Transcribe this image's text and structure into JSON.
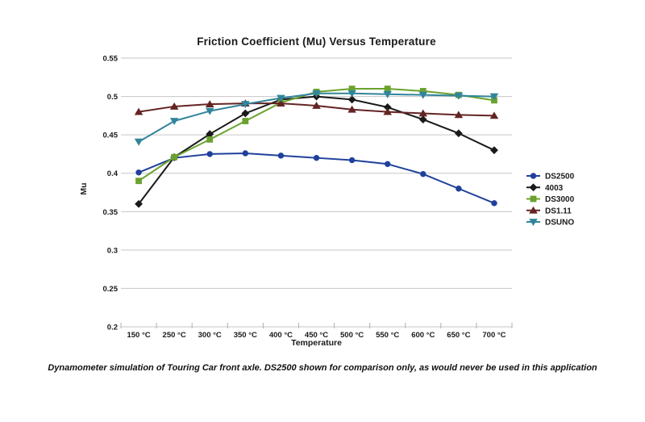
{
  "chart_data": {
    "type": "line",
    "title": "Friction Coefficient (Mu) Versus Temperature",
    "xlabel": "Temperature",
    "ylabel": "Mu",
    "categories": [
      "150 °C",
      "250 °C",
      "300 °C",
      "350 °C",
      "400 °C",
      "450 °C",
      "500 °C",
      "550 °C",
      "600 °C",
      "650 °C",
      "700 °C"
    ],
    "series": [
      {
        "name": "DS2500",
        "color": "#1f419b",
        "marker": "circle",
        "values": [
          0.401,
          0.42,
          0.425,
          0.426,
          0.423,
          0.42,
          0.417,
          0.412,
          0.399,
          0.38,
          0.361
        ]
      },
      {
        "name": "4003",
        "color": "#1a1a1a",
        "marker": "diamond",
        "values": [
          0.36,
          0.421,
          0.451,
          0.478,
          0.496,
          0.5,
          0.496,
          0.486,
          0.47,
          0.452,
          0.43
        ]
      },
      {
        "name": "DS3000",
        "color": "#6ba22e",
        "marker": "square",
        "values": [
          0.39,
          0.421,
          0.444,
          0.468,
          0.492,
          0.506,
          0.51,
          0.51,
          0.507,
          0.502,
          0.495
        ]
      },
      {
        "name": "DS1.11",
        "color": "#632423",
        "marker": "triangle-up",
        "values": [
          0.48,
          0.487,
          0.49,
          0.491,
          0.491,
          0.488,
          0.483,
          0.48,
          0.478,
          0.476,
          0.475
        ]
      },
      {
        "name": "DSUNO",
        "color": "#31859b",
        "marker": "triangle-down",
        "values": [
          0.441,
          0.468,
          0.481,
          0.49,
          0.498,
          0.504,
          0.504,
          0.503,
          0.502,
          0.501,
          0.5
        ]
      }
    ],
    "ylim": [
      0.2,
      0.55
    ],
    "yticks": [
      0.55,
      0.5,
      0.45,
      0.4,
      0.35,
      0.3,
      0.25,
      0.2
    ],
    "ytick_labels": [
      "0.55",
      "0.5",
      "0.45",
      "0.4",
      "0.35",
      "0.3",
      "0.25",
      "0.2"
    ],
    "grid": true,
    "legend_position": "right",
    "gridline_color": "#c6c6c6",
    "axis_color": "#b0b0b0",
    "text_color": "#1a1a1a"
  },
  "caption": "Dynamometer simulation of Touring Car front axle. DS2500 shown for comparison only, as would never be used in this application"
}
